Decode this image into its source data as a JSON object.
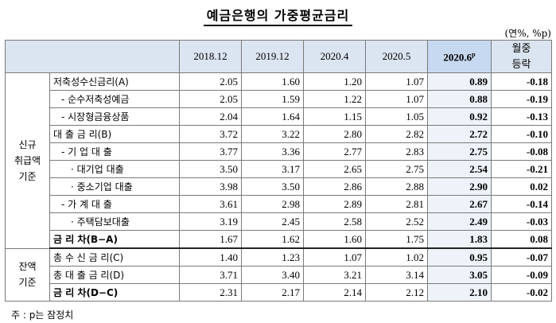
{
  "title": "예금은행의 가중평균금리",
  "unit": "(연%, %p)",
  "columns": [
    "2018.12",
    "2019.12",
    "2020.4",
    "2020.5",
    "2020.6",
    "월중\n등락"
  ],
  "current_superscript": "p",
  "groups": {
    "new": "신규\n취급액\n기준",
    "balance": "잔액\n기준"
  },
  "rows": [
    {
      "label": "저축성수신금리(A)",
      "values": [
        "2.05",
        "1.60",
        "1.20",
        "1.07",
        "0.89",
        "-0.18"
      ]
    },
    {
      "label": "- 순수저축성예금",
      "values": [
        "2.05",
        "1.59",
        "1.22",
        "1.07",
        "0.88",
        "-0.19"
      ]
    },
    {
      "label": "- 시장형금융상품",
      "values": [
        "2.04",
        "1.64",
        "1.15",
        "1.05",
        "0.92",
        "-0.13"
      ]
    },
    {
      "label": "대 출 금 리(B)",
      "values": [
        "3.72",
        "3.22",
        "2.80",
        "2.82",
        "2.72",
        "-0.10"
      ]
    },
    {
      "label": "- 기 업 대 출",
      "values": [
        "3.77",
        "3.36",
        "2.77",
        "2.83",
        "2.75",
        "-0.08"
      ]
    },
    {
      "label": "· 대기업 대출",
      "values": [
        "3.50",
        "3.17",
        "2.65",
        "2.75",
        "2.54",
        "-0.21"
      ]
    },
    {
      "label": "· 중소기업 대출",
      "values": [
        "3.98",
        "3.50",
        "2.86",
        "2.88",
        "2.90",
        "0.02"
      ]
    },
    {
      "label": "- 가 계 대 출",
      "values": [
        "3.61",
        "2.98",
        "2.89",
        "2.81",
        "2.67",
        "-0.14"
      ]
    },
    {
      "label": "· 주택담보대출",
      "values": [
        "3.19",
        "2.45",
        "2.58",
        "2.52",
        "2.49",
        "-0.03"
      ]
    },
    {
      "label": "금 리 차(B−A)",
      "values": [
        "1.67",
        "1.62",
        "1.60",
        "1.75",
        "1.83",
        "0.08"
      ]
    },
    {
      "label": "총 수 신 금 리(C)",
      "values": [
        "1.40",
        "1.23",
        "1.07",
        "1.02",
        "0.95",
        "-0.07"
      ]
    },
    {
      "label": "총 대 출 금 리(D)",
      "values": [
        "3.71",
        "3.40",
        "3.21",
        "3.14",
        "3.05",
        "-0.09"
      ]
    },
    {
      "label": "금 리 차(D−C)",
      "values": [
        "2.31",
        "2.17",
        "2.14",
        "2.12",
        "2.10",
        "-0.02"
      ]
    }
  ],
  "note": "주 : p는 잠정치"
}
